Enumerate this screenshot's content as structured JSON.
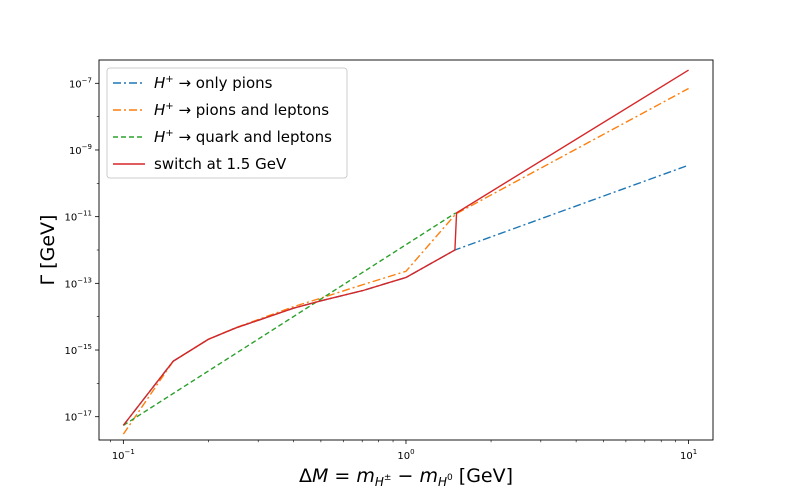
{
  "chart_data": {
    "type": "line",
    "xscale": "log",
    "yscale": "log",
    "xlim": [
      0.082,
      12.2
    ],
    "ylim": [
      2e-18,
      5e-07
    ],
    "xlabel": "ΔM = m_{H^±} − m_{H^0} [GeV]",
    "ylabel": "Γ [GeV]",
    "x_ticks": [
      {
        "value": 0.1,
        "base": "10",
        "exp": "−1"
      },
      {
        "value": 1,
        "base": "10",
        "exp": "0"
      },
      {
        "value": 10,
        "base": "10",
        "exp": "1"
      }
    ],
    "y_ticks": [
      {
        "value": 1e-17,
        "base": "10",
        "exp": "−17"
      },
      {
        "value": 1e-15,
        "base": "10",
        "exp": "−15"
      },
      {
        "value": 1e-13,
        "base": "10",
        "exp": "−13"
      },
      {
        "value": 1e-11,
        "base": "10",
        "exp": "−11"
      },
      {
        "value": 1e-09,
        "base": "10",
        "exp": "−9"
      },
      {
        "value": 1e-07,
        "base": "10",
        "exp": "−7"
      }
    ],
    "legend_position": "top-left",
    "series": [
      {
        "name": "H⁺ → only pions",
        "label_parts": {
          "particle": "H",
          "sup": "+",
          "rest": " → only pions"
        },
        "color": "#1f77b4",
        "dash": "8,3,2,3",
        "x": [
          0.1,
          0.15,
          0.2,
          0.25,
          0.3,
          0.4,
          0.5,
          0.7,
          1.0,
          1.49,
          10.0
        ],
        "y": [
          5.5e-18,
          4.6e-16,
          2.1e-15,
          4.6e-15,
          7.8e-15,
          1.8e-14,
          3e-14,
          6e-14,
          1.5e-13,
          1e-12,
          3.5e-10
        ]
      },
      {
        "name": "H⁺ → pions and leptons",
        "label_parts": {
          "particle": "H",
          "sup": "+",
          "rest": " → pions and leptons"
        },
        "color": "#ff7f0e",
        "dash": "8,3,2,3",
        "x": [
          0.1,
          0.15,
          0.2,
          0.25,
          0.3,
          0.4,
          0.5,
          0.7,
          1.0,
          1.5,
          10.0
        ],
        "y": [
          3e-18,
          4.6e-16,
          2.1e-15,
          4.7e-15,
          8.2e-15,
          2e-14,
          3.6e-14,
          9e-14,
          2.3e-13,
          1.2e-11,
          7e-08
        ]
      },
      {
        "name": "H⁺ → quark and leptons",
        "label_parts": {
          "particle": "H",
          "sup": "+",
          "rest": " → quark and leptons"
        },
        "color": "#2ca02c",
        "dash": "5,3",
        "x": [
          0.1,
          1.5
        ],
        "y": [
          5.5e-18,
          1.3e-11
        ]
      },
      {
        "name": "switch at 1.5 GeV",
        "label_parts": {
          "particle": "",
          "sup": "",
          "rest": "switch at 1.5 GeV"
        },
        "color": "#d62728",
        "dash": "",
        "x": [
          0.1,
          0.15,
          0.2,
          0.25,
          0.3,
          0.4,
          0.5,
          0.7,
          1.0,
          1.49,
          1.51,
          10.0
        ],
        "y": [
          5.5e-18,
          4.6e-16,
          2.1e-15,
          4.6e-15,
          7.8e-15,
          1.8e-14,
          3e-14,
          6e-14,
          1.5e-13,
          1e-12,
          1.3e-11,
          2.5e-07
        ]
      }
    ]
  }
}
